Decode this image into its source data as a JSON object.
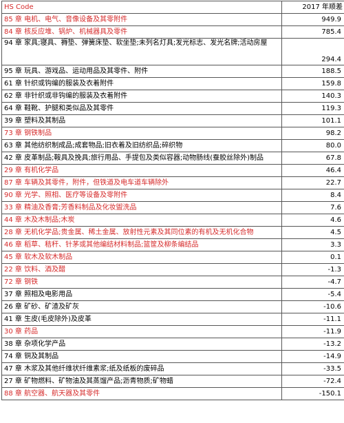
{
  "header": {
    "code": "HS Code",
    "value": "2017 年顺差"
  },
  "rows": [
    {
      "code": "85 章  电机、电气、音像设备及其零附件",
      "value": "949.9",
      "red": true
    },
    {
      "code": "84 章  核反应堆、锅炉、机械器具及零件",
      "value": "785.4",
      "red": true
    },
    {
      "code": "94 章  家具;寝具、褥垫、弹簧床垫、软坐垫;未列名灯具;发光标志、发光名牌;活动房屋",
      "value": "294.4",
      "red": false,
      "tall": true
    },
    {
      "code": "95 章  玩具、游戏品、运动用品及其零件、附件",
      "value": "188.5",
      "red": false
    },
    {
      "code": "61 章  针织或钩编的服装及衣着附件",
      "value": "159.8",
      "red": false
    },
    {
      "code": "62 章  非针织或非钩编的服装及衣着附件",
      "value": "140.3",
      "red": false
    },
    {
      "code": "64 章  鞋靴、护腿和类似品及其零件",
      "value": "119.3",
      "red": false
    },
    {
      "code": "39 章  塑料及其制品",
      "value": "101.1",
      "red": false
    },
    {
      "code": "73 章  钢铁制品",
      "value": "98.2",
      "red": true
    },
    {
      "code": "63 章  其他纺织制成品;成套物品;旧衣着及旧纺织品;碎织物",
      "value": "80.0",
      "red": false
    },
    {
      "code": "42 章  皮革制品;鞍具及挽具;旅行用品、手提包及类似容器;动物肠线(蚕胶丝除外)制品",
      "value": "67.8",
      "red": false
    },
    {
      "code": "29 章  有机化学品",
      "value": "46.4",
      "red": true
    },
    {
      "code": "87 章  车辆及其零件，附件，但铁道及电车道车辆除外",
      "value": "22.7",
      "red": true
    },
    {
      "code": "90 章  光学、照相、医疗等设备及零附件",
      "value": "8.4",
      "red": true
    },
    {
      "code": "33 章  精油及香膏;芳香料制品及化妆盥洗品",
      "value": "7.6",
      "red": true
    },
    {
      "code": "44 章  木及木制品;木炭",
      "value": "4.6",
      "red": true
    },
    {
      "code": "28 章  无机化学品;贵金属、稀土金属、放射性元素及其同位素的有机及无机化合物",
      "value": "4.5",
      "red": true
    },
    {
      "code": "46 章  稻草、秸秆、针茅或其他编结材料制品;篮筐及柳条编结品",
      "value": "3.3",
      "red": true
    },
    {
      "code": "45 章  软木及软木制品",
      "value": "0.1",
      "red": true
    },
    {
      "code": "22 章  饮料、酒及醋",
      "value": "-1.3",
      "red": true
    },
    {
      "code": "72 章  钢铁",
      "value": "-4.7",
      "red": true
    },
    {
      "code": "37 章  照相及电影用品",
      "value": "-5.4",
      "red": false
    },
    {
      "code": "26 章  矿砂、矿渣及矿灰",
      "value": "-10.6",
      "red": false
    },
    {
      "code": "41 章  生皮(毛皮除外)及皮革",
      "value": "-11.1",
      "red": false
    },
    {
      "code": "30 章  药品",
      "value": "-11.9",
      "red": true
    },
    {
      "code": "38 章  杂项化学产品",
      "value": "-13.2",
      "red": false
    },
    {
      "code": "74 章  铜及其制品",
      "value": "-14.9",
      "red": false
    },
    {
      "code": "47 章  木浆及其他纤维状纤维素浆;纸及纸板的废碎品",
      "value": "-33.5",
      "red": false
    },
    {
      "code": "27 章  矿物燃料、矿物油及其蒸馏产品;沥青物质;矿物蜡",
      "value": "-72.4",
      "red": false
    },
    {
      "code": "88 章  航空器、航天器及其零件",
      "value": "-150.1",
      "red": true
    }
  ],
  "colors": {
    "highlight_text": "#d62b2b",
    "normal_text": "#000000",
    "border": "#555555"
  }
}
